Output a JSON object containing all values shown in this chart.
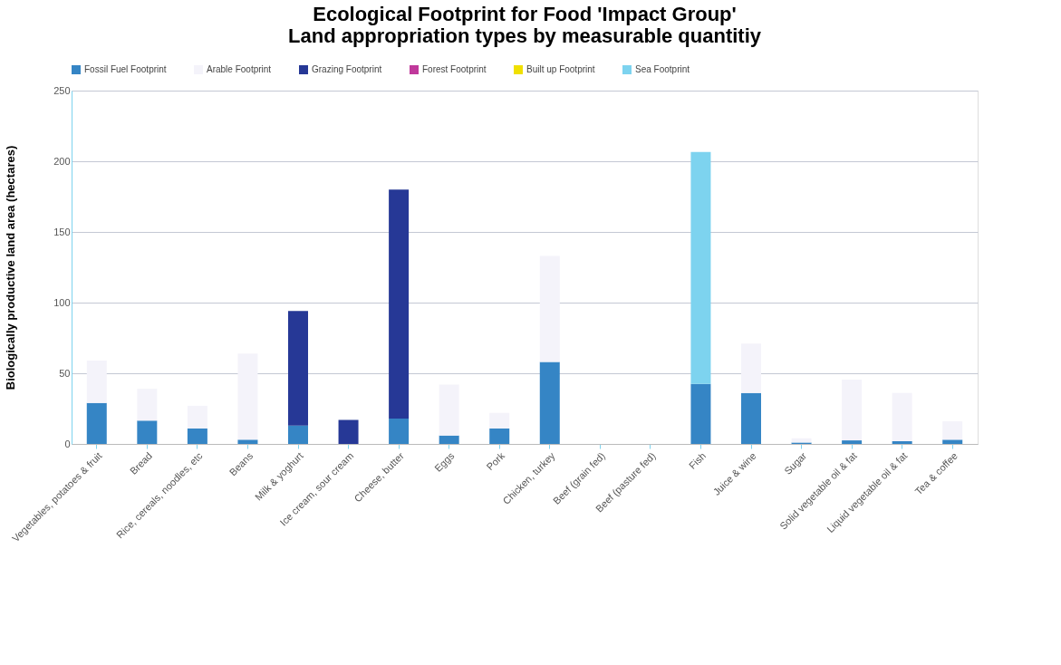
{
  "chart_data": {
    "type": "bar",
    "title": [
      "Ecological Footprint for Food 'Impact Group'",
      "Land appropriation types by measurable quantitiy"
    ],
    "ylabel": "Biologically productive land area (hectares)",
    "categories": [
      "Vegetables, potatoes & fruit",
      "Bread",
      "Rice, cereals, noodles, etc",
      "Beans",
      "Milk & yoghurt",
      "Ice cream, sour cream",
      "Cheese, butter",
      "Eggs",
      "Pork",
      "Chicken, turkey",
      "Beef (grain fed)",
      "Beef (pasture fed)",
      "Fish",
      "Juice & wine",
      "Sugar",
      "Solid vegetable oil & fat",
      "Liquid vegetable oil & fat",
      "Tea & coffee"
    ],
    "stacked": true,
    "series": [
      {
        "name": "Fossil Fuel Footprint",
        "color": "#3585c5",
        "values": [
          29,
          16.5,
          11,
          3,
          13,
          0,
          18,
          6,
          11,
          58,
          0,
          0,
          42.5,
          36,
          1,
          2.5,
          2,
          3
        ]
      },
      {
        "name": "Arable Footprint",
        "color": "#f4f3fa",
        "values": [
          30,
          22.5,
          16,
          61,
          0,
          0,
          0,
          36,
          11,
          75,
          0,
          0,
          0,
          35,
          3,
          43,
          34,
          13
        ]
      },
      {
        "name": "Grazing Footprint",
        "color": "#263896",
        "values": [
          0,
          0,
          0,
          0,
          81,
          17,
          162,
          0,
          0,
          0,
          0,
          0,
          0,
          0,
          0,
          0,
          0,
          0
        ]
      },
      {
        "name": "Forest Footprint",
        "color": "#c0399b",
        "values": [
          0,
          0,
          0,
          0,
          0,
          0,
          0,
          0,
          0,
          0,
          0,
          0,
          0,
          0,
          0,
          0,
          0,
          0
        ]
      },
      {
        "name": "Built up Footprint",
        "color": "#f0e000",
        "values": [
          0,
          0,
          0,
          0,
          0,
          0,
          0,
          0,
          0,
          0,
          0,
          0,
          0,
          0,
          0,
          0,
          0,
          0
        ]
      },
      {
        "name": "Sea Footprint",
        "color": "#7dd3ef",
        "values": [
          0,
          0,
          0,
          0,
          0,
          0,
          0,
          0,
          0,
          0,
          0,
          0,
          164,
          0,
          0,
          0,
          0,
          0
        ]
      }
    ],
    "ylim": [
      0,
      250
    ],
    "yticks": [
      0,
      50,
      100,
      150,
      200,
      250
    ],
    "grid": "y",
    "legend": "top"
  }
}
